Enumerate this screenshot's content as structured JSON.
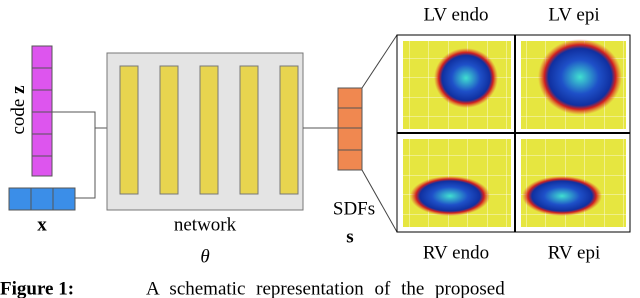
{
  "figure": {
    "inputs": {
      "code_label": "code",
      "code_symbol": "z",
      "x_symbol": "x"
    },
    "network": {
      "label": "network",
      "param": "θ"
    },
    "output": {
      "label": "SDFs",
      "symbol": "s"
    },
    "panels": [
      "LV endo",
      "LV epi",
      "RV endo",
      "RV epi"
    ],
    "caption": {
      "number": "Figure 1:",
      "text": "A schematic representation of the proposed"
    }
  }
}
